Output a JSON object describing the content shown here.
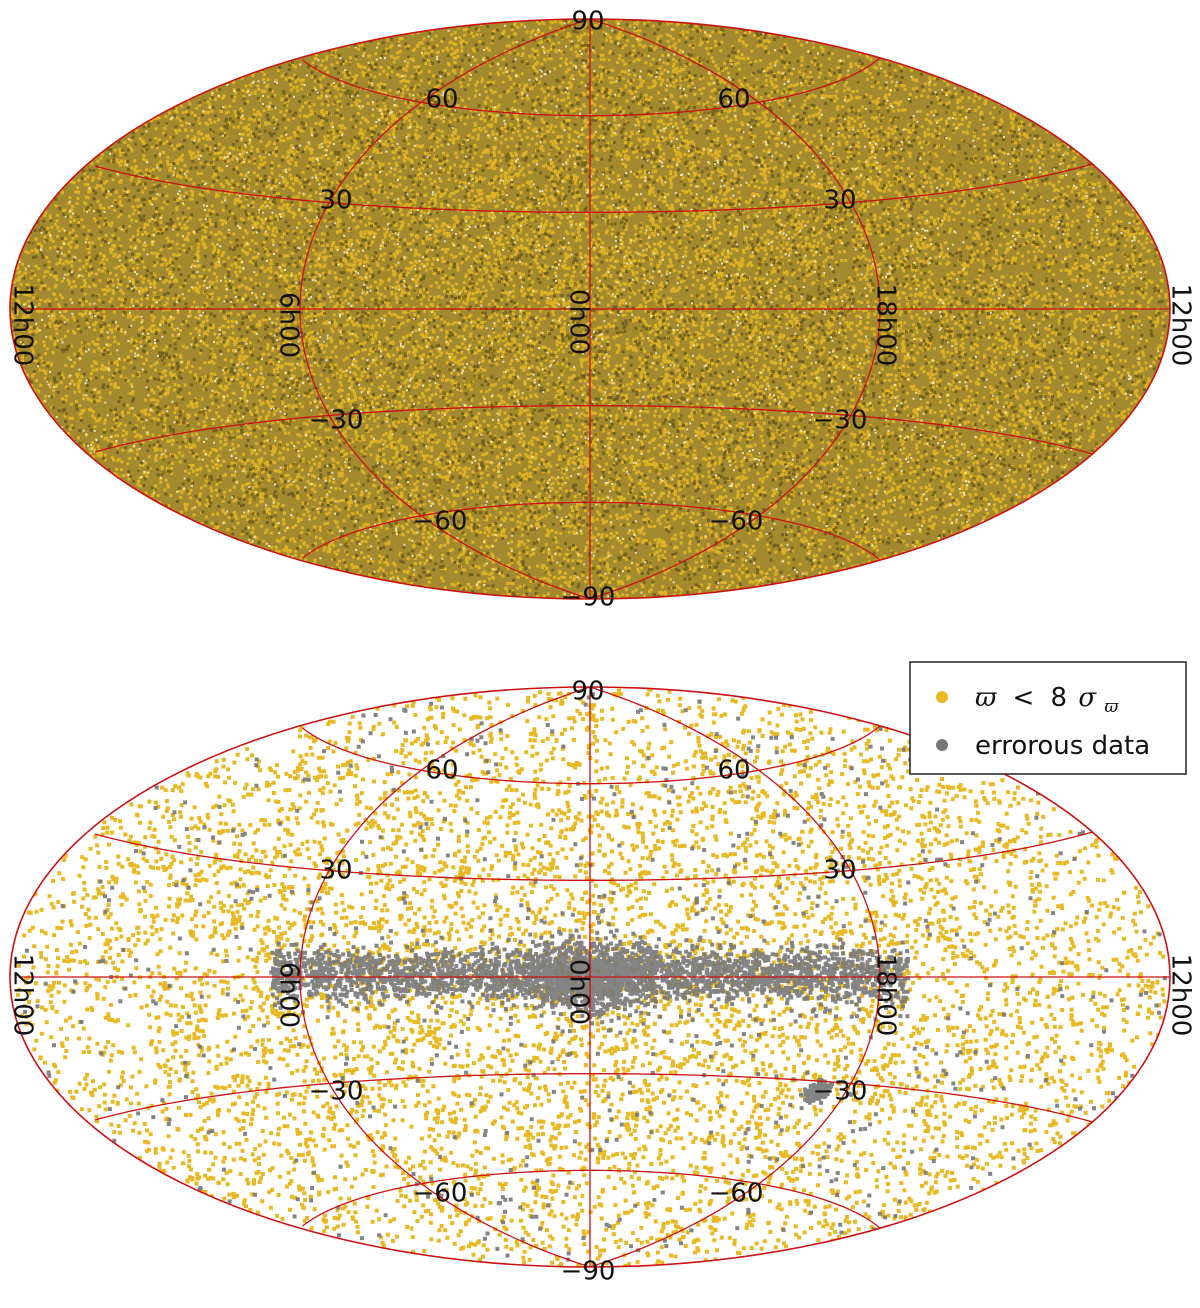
{
  "chart_data": [
    {
      "type": "scatter",
      "projection": "aitoff",
      "title": "",
      "xlabel": "",
      "ylabel": "",
      "ra_tick_labels": {
        "center": "0h00",
        "left_inner": "6h00",
        "right_inner": "18h00",
        "left_edge": "12h00",
        "right_edge": "12h00"
      },
      "dec_tick_labels": {
        "top": "90",
        "bottom": "−90",
        "p60": "60",
        "p30": "30",
        "m30": "−30",
        "m60": "−60"
      },
      "ra_grid_hours": [
        0,
        6,
        12,
        18
      ],
      "dec_grid_degrees": [
        -90,
        -60,
        -30,
        0,
        30,
        60,
        90
      ],
      "grid": true,
      "grid_color": "#cc1111",
      "series": [
        {
          "color": "#e8b923",
          "distribution": "uniform all-sky, very dense",
          "approx_points": 30000
        }
      ]
    },
    {
      "type": "scatter",
      "projection": "aitoff",
      "title": "",
      "xlabel": "",
      "ylabel": "",
      "ra_tick_labels": {
        "center": "0h00",
        "left_inner": "6h00",
        "right_inner": "18h00",
        "left_edge": "12h00",
        "right_edge": "12h00"
      },
      "dec_tick_labels": {
        "top": "90",
        "bottom": "−90",
        "p60": "60",
        "p30": "30",
        "m30": "−30",
        "m60": "−60"
      },
      "ra_grid_hours": [
        0,
        6,
        12,
        18
      ],
      "dec_grid_degrees": [
        -90,
        -60,
        -30,
        0,
        30,
        60,
        90
      ],
      "grid": true,
      "grid_color": "#cc1111",
      "legend_placement": "top-right",
      "series": [
        {
          "name_parts": [
            "ϖ",
            "<",
            "8",
            "σ",
            "ϖ"
          ],
          "color": "#e8b923",
          "distribution": "uniform all-sky",
          "approx_points": 7000
        },
        {
          "name": "errorous data",
          "color": "#777777",
          "distribution": "concentrated along the galactic plane and bulge, plus sparse all-sky",
          "approx_points": 3800
        }
      ]
    }
  ]
}
